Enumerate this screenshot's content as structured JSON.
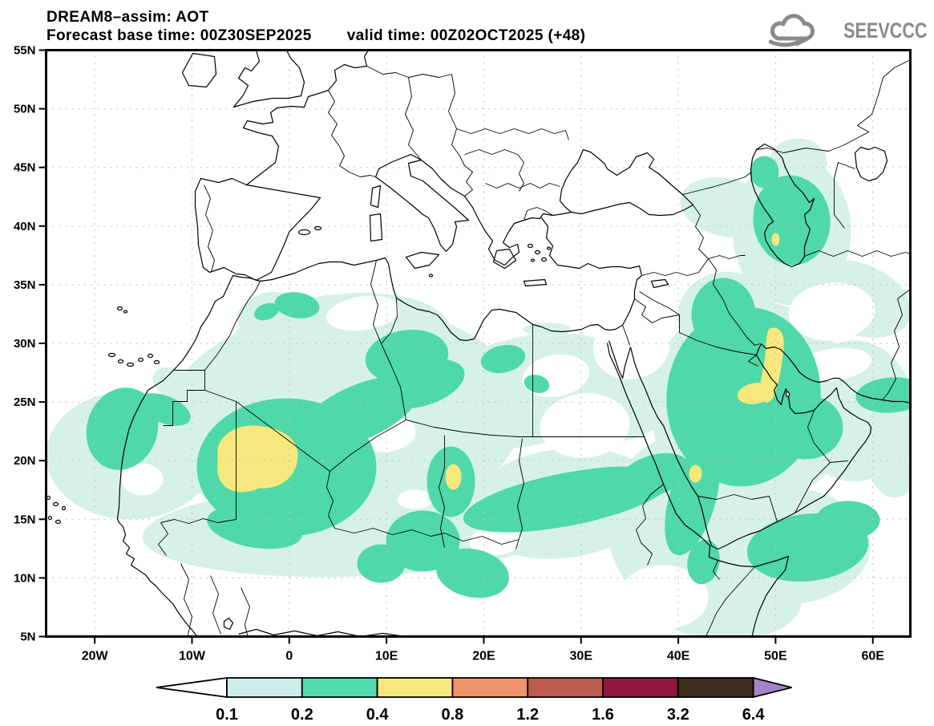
{
  "header": {
    "title": "DREAM8–assim: AOT",
    "base_time": "Forecast base time: 00Z30SEP2025",
    "valid_time": "valid time: 00Z02OCT2025 (+48)"
  },
  "logo": {
    "text": "SEEVCCC",
    "color": "#8a8a8a"
  },
  "map": {
    "x_ticks": [
      {
        "label": "20W",
        "lon": -20
      },
      {
        "label": "10W",
        "lon": -10
      },
      {
        "label": "0",
        "lon": 0
      },
      {
        "label": "10E",
        "lon": 10
      },
      {
        "label": "20E",
        "lon": 20
      },
      {
        "label": "30E",
        "lon": 30
      },
      {
        "label": "40E",
        "lon": 40
      },
      {
        "label": "50E",
        "lon": 50
      },
      {
        "label": "60E",
        "lon": 60
      }
    ],
    "y_ticks": [
      {
        "label": "55N",
        "lat": 55
      },
      {
        "label": "50N",
        "lat": 50
      },
      {
        "label": "45N",
        "lat": 45
      },
      {
        "label": "40N",
        "lat": 40
      },
      {
        "label": "35N",
        "lat": 35
      },
      {
        "label": "30N",
        "lat": 30
      },
      {
        "label": "25N",
        "lat": 25
      },
      {
        "label": "20N",
        "lat": 20
      },
      {
        "label": "15N",
        "lat": 15
      },
      {
        "label": "10N",
        "lat": 10
      },
      {
        "label": "5N",
        "lat": 5
      }
    ],
    "fill_colors": {
      "aot_0_1": "#d6f1ea",
      "aot_0_2": "#4fd9a8",
      "aot_0_4": "#f7e87e"
    },
    "line_color": "#000000",
    "grid_color": "#bdbdbd"
  },
  "colorbar": {
    "labels": [
      "0.1",
      "0.2",
      "0.4",
      "0.8",
      "1.2",
      "1.6",
      "3.2",
      "6.4"
    ],
    "segment_colors": [
      "#ffffff",
      "#cceee6",
      "#53dcb0",
      "#f6e87b",
      "#f0926b",
      "#bd5c4e",
      "#931540",
      "#3f2d1d",
      "#a385c6"
    ]
  },
  "chart_data": {
    "type": "filled-contour-map",
    "title": "DREAM8–assim: AOT",
    "forecast_base_time": "00Z30SEP2025",
    "valid_time": "00Z02OCT2025 (+48)",
    "lon_ticks": [
      "20W",
      "10W",
      "0",
      "10E",
      "20E",
      "30E",
      "40E",
      "50E",
      "60E"
    ],
    "lat_ticks": [
      "55N",
      "50N",
      "45N",
      "40N",
      "35N",
      "30N",
      "25N",
      "20N",
      "15N",
      "10N",
      "5N"
    ],
    "contour_levels": [
      0.1,
      0.2,
      0.4,
      0.8,
      1.2,
      1.6,
      3.2,
      6.4
    ],
    "level_colors": [
      "#ffffff",
      "#cceee6",
      "#53dcb0",
      "#f6e87b",
      "#f0926b",
      "#bd5c4e",
      "#931540",
      "#3f2d1d",
      "#a385c6"
    ],
    "legend_position": "bottom",
    "grid": "dotted, 10deg lon x 5deg lat",
    "regions": [
      {
        "region": "West Africa (Mali / southern Algeria, ~8W–5E, 17–24N)",
        "aot": "0.4–0.8 core inside broad 0.2–0.4 plume"
      },
      {
        "region": "Saharan belt from Atlantic (20W) to ~40E, 10–34N",
        "aot": "0.1–0.2 widespread"
      },
      {
        "region": "Northern Chad (~16E, 19N)",
        "aot": "small 0.4–0.8 spot"
      },
      {
        "region": "Sudan to Red Sea coast belt (25–40E, 15–22N)",
        "aot": "0.2–0.4"
      },
      {
        "region": "Arabian Peninsula interior",
        "aot": "0.2–0.4 broad"
      },
      {
        "region": "Persian Gulf west coast (Qatar/Bahrain, ~50E, 25–30N)",
        "aot": "0.4–0.8 elongated band"
      },
      {
        "region": "Southern Caspian Sea (~50E, 36–42N)",
        "aot": "0.2–0.4 with tiny 0.4–0.8 spot"
      },
      {
        "region": "Yemen / Oman coast and Gulf of Aden",
        "aot": "0.2–0.4"
      },
      {
        "region": "Europe and Mediterranean",
        "aot": "below 0.1 (white)"
      }
    ]
  }
}
